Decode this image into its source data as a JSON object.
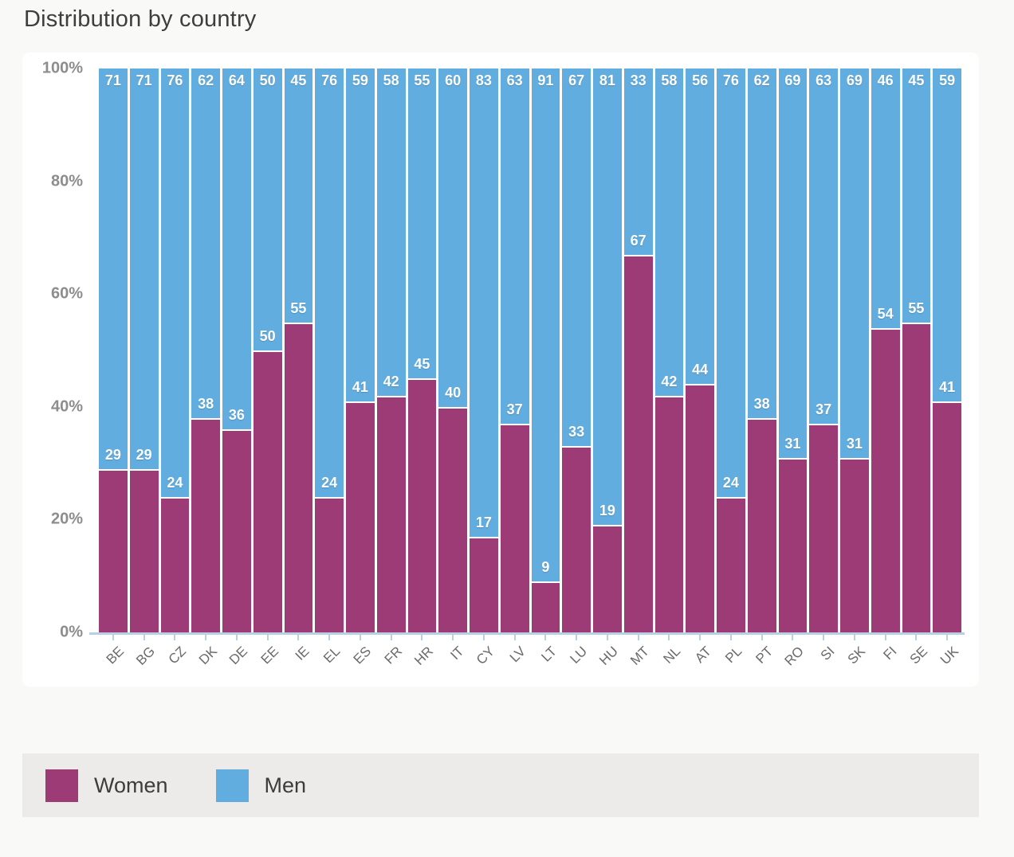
{
  "chart": {
    "title": "Distribution by country",
    "y_axis_ticks": [
      "100%",
      "80%",
      "60%",
      "40%",
      "20%",
      "0%"
    ],
    "legend": [
      {
        "label": "Women",
        "color": "#9c3b76"
      },
      {
        "label": "Men",
        "color": "#61ade0"
      }
    ]
  },
  "colors": {
    "women": "#9c3b76",
    "men": "#61ade0",
    "axis_line": "#b9cfe4",
    "page_background": "#f9f9f8",
    "panel_background": "#ffffff",
    "legend_background": "#ecebe9"
  },
  "chart_data": {
    "type": "bar",
    "stacked": true,
    "unit": "%",
    "title": "Distribution by country",
    "xlabel": "",
    "ylabel": "",
    "ylim": [
      0,
      100
    ],
    "grid": false,
    "legend_position": "bottom",
    "value_labels": true,
    "categories": [
      "BE",
      "BG",
      "CZ",
      "DK",
      "DE",
      "EE",
      "IE",
      "EL",
      "ES",
      "FR",
      "HR",
      "IT",
      "CY",
      "LV",
      "LT",
      "LU",
      "HU",
      "MT",
      "NL",
      "AT",
      "PL",
      "PT",
      "RO",
      "SI",
      "SK",
      "FI",
      "SE",
      "UK"
    ],
    "series": [
      {
        "name": "Women",
        "color": "#9c3b76",
        "values": [
          29,
          29,
          24,
          38,
          36,
          50,
          55,
          24,
          41,
          42,
          45,
          40,
          17,
          37,
          9,
          33,
          19,
          67,
          42,
          44,
          24,
          38,
          31,
          37,
          31,
          54,
          55,
          41
        ]
      },
      {
        "name": "Men",
        "color": "#61ade0",
        "values": [
          71,
          71,
          76,
          62,
          64,
          50,
          45,
          76,
          59,
          58,
          55,
          60,
          83,
          63,
          91,
          67,
          81,
          33,
          58,
          56,
          76,
          62,
          69,
          63,
          69,
          46,
          45,
          59
        ]
      }
    ]
  }
}
